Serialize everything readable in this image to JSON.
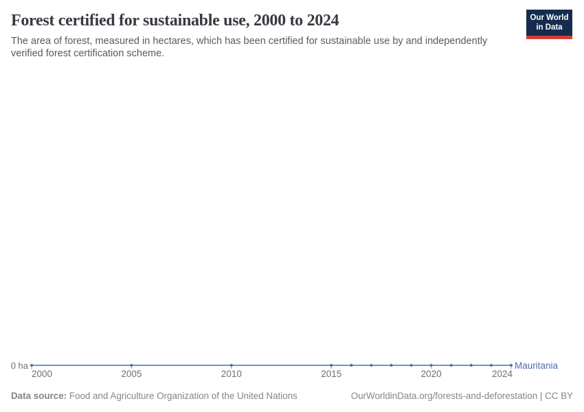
{
  "header": {
    "title": "Forest certified for sustainable use, 2000 to 2024",
    "subtitle": "The area of forest, measured in hectares, which has been certified for sustainable use by and independently verified forest certification scheme."
  },
  "logo": {
    "line1": "Our World",
    "line2": "in Data",
    "bg_color": "#152c4e",
    "accent_color": "#d73a34"
  },
  "chart_data": {
    "type": "line",
    "title": "Forest certified for sustainable use, 2000 to 2024",
    "xlim": [
      2000,
      2024
    ],
    "x_ticks": [
      2000,
      2005,
      2010,
      2015,
      2020,
      2024
    ],
    "y_axis_label": "0 ha",
    "unit": "ha",
    "grid": false,
    "legend_position": "right-of-line",
    "series": [
      {
        "name": "Mauritania",
        "color": "#4e6cb2",
        "x": [
          2000,
          2005,
          2010,
          2015,
          2016,
          2017,
          2018,
          2019,
          2020,
          2021,
          2022,
          2023,
          2024
        ],
        "values": [
          0,
          0,
          0,
          0,
          0,
          0,
          0,
          0,
          0,
          0,
          0,
          0,
          0
        ]
      }
    ]
  },
  "footer": {
    "datasource_label": "Data source:",
    "datasource_value": " Food and Agriculture Organization of the United Nations",
    "attribution": "OurWorldinData.org/forests-and-deforestation | CC BY"
  }
}
